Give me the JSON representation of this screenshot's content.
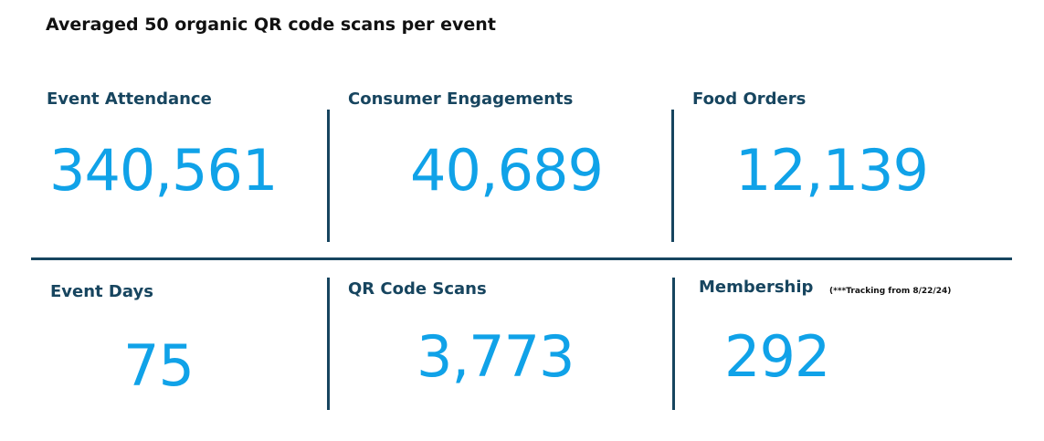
{
  "headline": "Averaged 50 organic QR code scans per event",
  "metrics": {
    "event_attendance": {
      "label": "Event Attendance",
      "value": "340,561"
    },
    "consumer_engagements": {
      "label": "Consumer Engagements",
      "value": "40,689"
    },
    "food_orders": {
      "label": "Food Orders",
      "value": "12,139"
    },
    "event_days": {
      "label": "Event Days",
      "value": "75"
    },
    "qr_code_scans": {
      "label": "QR Code Scans",
      "value": "3,773"
    },
    "membership": {
      "label": "Membership",
      "note": "(***Tracking from 8/22/24)",
      "value": "292"
    }
  },
  "colors": {
    "label": "#17455f",
    "value": "#10a2e8",
    "divider": "#17455f",
    "headline": "#111111"
  }
}
